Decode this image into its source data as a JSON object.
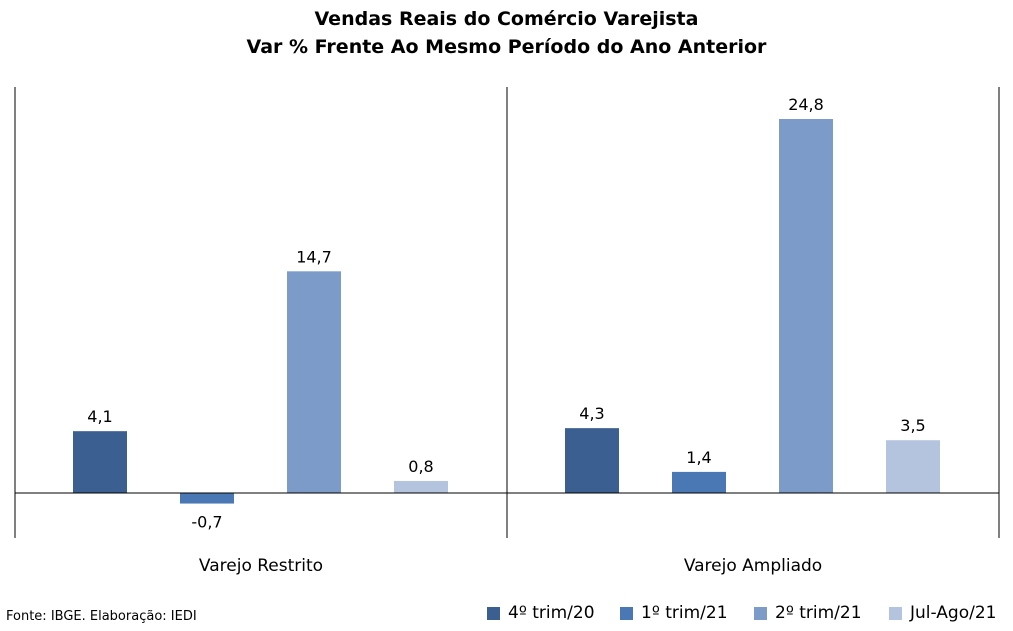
{
  "chart_data": {
    "type": "bar",
    "title": "Vendas Reais do Comércio Varejista",
    "subtitle": "Var % Frente Ao Mesmo Período do Ano Anterior",
    "categories": [
      "Varejo Restrito",
      "Varejo Ampliado"
    ],
    "series": [
      {
        "name": "4º trim/20",
        "values": [
          4.1,
          4.3
        ],
        "color": "#3b5f90"
      },
      {
        "name": "1º trim/21",
        "values": [
          -0.7,
          1.4
        ],
        "color": "#4a78b5"
      },
      {
        "name": "2º trim/21",
        "values": [
          14.7,
          24.8
        ],
        "color": "#7d9bc8"
      },
      {
        "name": "Jul-Ago/21",
        "values": [
          0.8,
          3.5
        ],
        "color": "#b4c4df"
      }
    ],
    "data_labels": [
      [
        "4,1",
        "4,3"
      ],
      [
        "-0,7",
        "1,4"
      ],
      [
        "14,7",
        "24,8"
      ],
      [
        "0,8",
        "3,5"
      ]
    ],
    "ylim": [
      -3,
      27
    ],
    "grid": false,
    "legend_position": "bottom-right"
  },
  "source": "Fonte: IBGE. Elaboração: IEDI"
}
